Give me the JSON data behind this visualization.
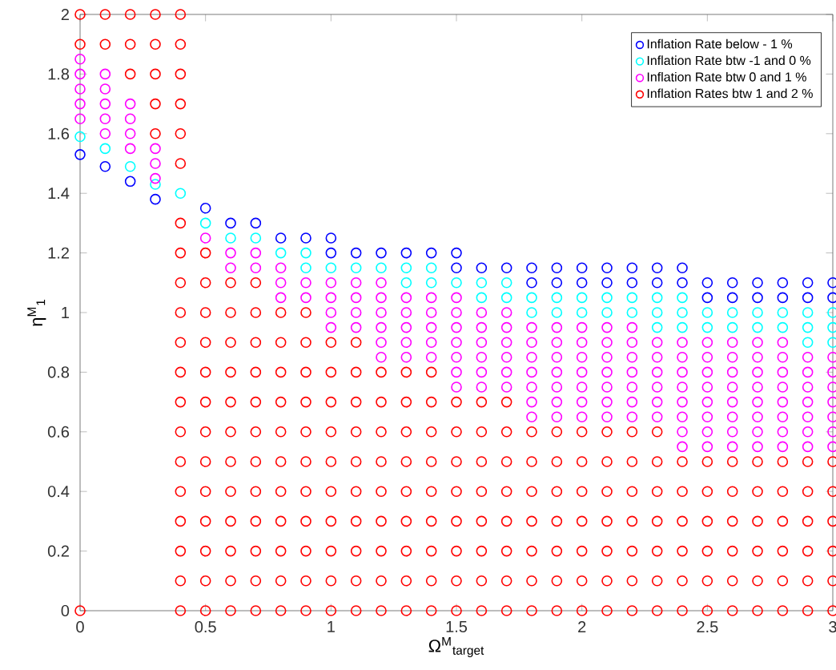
{
  "chart_data": {
    "type": "scatter",
    "xlabel": "Ω$^{M}$$_{target}$",
    "ylabel": "η$^{M}$$_{1}$",
    "xlim": [
      0,
      3
    ],
    "ylim": [
      0,
      2
    ],
    "xticks": [
      0,
      0.5,
      1,
      1.5,
      2,
      2.5,
      3
    ],
    "yticks": [
      0,
      0.2,
      0.4,
      0.6,
      0.8,
      1,
      1.2,
      1.4,
      1.6,
      1.8,
      2
    ],
    "grid": false,
    "legend": "top right",
    "marker": "circle",
    "series": [
      {
        "name": "Inflation Rate below - 1 %",
        "color": "#0000ff",
        "x": [
          0,
          0.1,
          0.2,
          0.3,
          0.5,
          0.6,
          0.7,
          0.8,
          0.9,
          1,
          1,
          1.1,
          1.2,
          1.3,
          1.4,
          1.5,
          1.5,
          1.6,
          1.7,
          1.8,
          1.8,
          1.9,
          1.9,
          2,
          2,
          2.1,
          2.1,
          2.2,
          2.2,
          2.3,
          2.3,
          2.4,
          2.4,
          2.5,
          2.5,
          2.6,
          2.6,
          2.7,
          2.7,
          2.8,
          2.8,
          2.9,
          2.9,
          3,
          3
        ],
        "values": [
          1.53,
          1.49,
          1.44,
          1.38,
          1.35,
          1.3,
          1.3,
          1.25,
          1.25,
          1.2,
          1.25,
          1.2,
          1.2,
          1.2,
          1.2,
          1.15,
          1.2,
          1.15,
          1.15,
          1.1,
          1.15,
          1.1,
          1.15,
          1.1,
          1.15,
          1.1,
          1.15,
          1.1,
          1.15,
          1.1,
          1.15,
          1.1,
          1.15,
          1.05,
          1.1,
          1.05,
          1.1,
          1.05,
          1.1,
          1.05,
          1.1,
          1.05,
          1.1,
          1.05,
          1.1
        ]
      },
      {
        "name": "Inflation Rate btw -1 and 0 %",
        "color": "#00ffff",
        "x": [
          0,
          0.1,
          0.2,
          0.3,
          0.4,
          0.5,
          0.6,
          0.7,
          0.8,
          0.9,
          0.9,
          1,
          1.1,
          1.2,
          1.3,
          1.3,
          1.4,
          1.4,
          1.5,
          1.6,
          1.6,
          1.7,
          1.7,
          1.8,
          1.8,
          1.9,
          1.9,
          2,
          2,
          2.1,
          2.1,
          2.2,
          2.2,
          2.3,
          2.3,
          2.3,
          2.4,
          2.4,
          2.4,
          2.5,
          2.5,
          2.6,
          2.6,
          2.7,
          2.7,
          2.8,
          2.8,
          2.9,
          2.9,
          2.9,
          3,
          3,
          3
        ],
        "values": [
          1.59,
          1.55,
          1.49,
          1.43,
          1.4,
          1.3,
          1.25,
          1.25,
          1.2,
          1.15,
          1.2,
          1.15,
          1.15,
          1.15,
          1.1,
          1.15,
          1.1,
          1.15,
          1.1,
          1.05,
          1.1,
          1.05,
          1.1,
          1,
          1.05,
          1,
          1.05,
          1,
          1.05,
          1,
          1.05,
          1,
          1.05,
          0.95,
          1,
          1.05,
          0.95,
          1,
          1.05,
          0.95,
          1,
          0.95,
          1,
          0.95,
          1,
          0.95,
          1,
          0.9,
          0.95,
          1,
          0.9,
          0.95,
          1
        ]
      },
      {
        "name": "Inflation Rate btw 0 and 1 %",
        "color": "#ff00ff",
        "x": [
          0,
          0,
          0,
          0,
          0,
          0.1,
          0.1,
          0.1,
          0.1,
          0.1,
          0.2,
          0.2,
          0.2,
          0.2,
          0.3,
          0.3,
          0.3,
          0.5,
          0.6,
          0.6,
          0.7,
          0.7,
          0.8,
          0.8,
          0.8,
          0.9,
          0.9,
          1,
          1,
          1,
          1,
          1.1,
          1.1,
          1.1,
          1.1,
          1.2,
          1.2,
          1.2,
          1.2,
          1.2,
          1.2,
          1.3,
          1.3,
          1.3,
          1.3,
          1.3,
          1.4,
          1.4,
          1.4,
          1.4,
          1.4,
          1.5,
          1.5,
          1.5,
          1.5,
          1.5,
          1.5,
          1.5,
          1.6,
          1.6,
          1.6,
          1.6,
          1.6,
          1.6,
          1.7,
          1.7,
          1.7,
          1.7,
          1.7,
          1.7,
          1.8,
          1.8,
          1.8,
          1.8,
          1.8,
          1.8,
          1.8,
          1.9,
          1.9,
          1.9,
          1.9,
          1.9,
          1.9,
          1.9,
          2,
          2,
          2,
          2,
          2,
          2,
          2,
          2.1,
          2.1,
          2.1,
          2.1,
          2.1,
          2.1,
          2.1,
          2.2,
          2.2,
          2.2,
          2.2,
          2.2,
          2.2,
          2.2,
          2.3,
          2.3,
          2.3,
          2.3,
          2.3,
          2.3,
          2.4,
          2.4,
          2.4,
          2.4,
          2.4,
          2.4,
          2.4,
          2.4,
          2.5,
          2.5,
          2.5,
          2.5,
          2.5,
          2.5,
          2.5,
          2.5,
          2.6,
          2.6,
          2.6,
          2.6,
          2.6,
          2.6,
          2.6,
          2.6,
          2.7,
          2.7,
          2.7,
          2.7,
          2.7,
          2.7,
          2.7,
          2.7,
          2.8,
          2.8,
          2.8,
          2.8,
          2.8,
          2.8,
          2.8,
          2.8,
          2.9,
          2.9,
          2.9,
          2.9,
          2.9,
          2.9,
          2.9,
          3,
          3,
          3,
          3,
          3,
          3,
          3
        ],
        "values": [
          1.65,
          1.7,
          1.75,
          1.8,
          1.85,
          1.6,
          1.65,
          1.7,
          1.75,
          1.8,
          1.55,
          1.6,
          1.65,
          1.7,
          1.45,
          1.5,
          1.55,
          1.25,
          1.15,
          1.2,
          1.15,
          1.2,
          1.05,
          1.1,
          1.15,
          1.05,
          1.1,
          0.95,
          1,
          1.05,
          1.1,
          0.95,
          1,
          1.05,
          1.1,
          0.85,
          0.9,
          0.95,
          1,
          1.05,
          1.1,
          0.85,
          0.9,
          0.95,
          1,
          1.05,
          0.85,
          0.9,
          0.95,
          1,
          1.05,
          0.75,
          0.8,
          0.85,
          0.9,
          0.95,
          1,
          1.05,
          0.75,
          0.8,
          0.85,
          0.9,
          0.95,
          1,
          0.75,
          0.8,
          0.85,
          0.9,
          0.95,
          1,
          0.65,
          0.7,
          0.75,
          0.8,
          0.85,
          0.9,
          0.95,
          0.65,
          0.7,
          0.75,
          0.8,
          0.85,
          0.9,
          0.95,
          0.65,
          0.7,
          0.75,
          0.8,
          0.85,
          0.9,
          0.95,
          0.65,
          0.7,
          0.75,
          0.8,
          0.85,
          0.9,
          0.95,
          0.65,
          0.7,
          0.75,
          0.8,
          0.85,
          0.9,
          0.95,
          0.65,
          0.7,
          0.75,
          0.8,
          0.85,
          0.9,
          0.55,
          0.6,
          0.65,
          0.7,
          0.75,
          0.8,
          0.85,
          0.9,
          0.55,
          0.6,
          0.65,
          0.7,
          0.75,
          0.8,
          0.85,
          0.9,
          0.55,
          0.6,
          0.65,
          0.7,
          0.75,
          0.8,
          0.85,
          0.9,
          0.55,
          0.6,
          0.65,
          0.7,
          0.75,
          0.8,
          0.85,
          0.9,
          0.55,
          0.6,
          0.65,
          0.7,
          0.75,
          0.8,
          0.85,
          0.9,
          0.55,
          0.6,
          0.65,
          0.7,
          0.75,
          0.8,
          0.85,
          0.55,
          0.6,
          0.65,
          0.7,
          0.75,
          0.8,
          0.85
        ]
      },
      {
        "name": "Inflation Rates btw 1 and 2 %",
        "color": "#ff0000",
        "x": [
          0,
          0,
          0,
          0.1,
          0.1,
          0.2,
          0.2,
          0.2,
          0.3,
          0.3,
          0.3,
          0.3,
          0.3,
          0.4,
          0.4,
          0.4,
          0.4,
          0.4,
          0.4,
          0.4,
          0.4,
          0.4,
          0.4,
          0.4,
          0.4,
          0.4,
          0.4,
          0.4,
          0.4,
          0.4,
          0.4,
          0.4,
          0.4,
          0.5,
          0.5,
          0.5,
          0.5,
          0.5,
          0.5,
          0.5,
          0.5,
          0.5,
          0.5,
          0.5,
          0.5,
          0.5,
          0.6,
          0.6,
          0.6,
          0.6,
          0.6,
          0.6,
          0.6,
          0.6,
          0.6,
          0.6,
          0.6,
          0.6,
          0.7,
          0.7,
          0.7,
          0.7,
          0.7,
          0.7,
          0.7,
          0.7,
          0.7,
          0.7,
          0.7,
          0.7,
          0.8,
          0.8,
          0.8,
          0.8,
          0.8,
          0.8,
          0.8,
          0.8,
          0.8,
          0.8,
          0.8,
          0.9,
          0.9,
          0.9,
          0.9,
          0.9,
          0.9,
          0.9,
          0.9,
          0.9,
          0.9,
          0.9,
          1,
          1,
          1,
          1,
          1,
          1,
          1,
          1,
          1,
          1,
          1.1,
          1.1,
          1.1,
          1.1,
          1.1,
          1.1,
          1.1,
          1.1,
          1.1,
          1.1,
          1.2,
          1.2,
          1.2,
          1.2,
          1.2,
          1.2,
          1.2,
          1.2,
          1.2,
          1.3,
          1.3,
          1.3,
          1.3,
          1.3,
          1.3,
          1.3,
          1.3,
          1.3,
          1.4,
          1.4,
          1.4,
          1.4,
          1.4,
          1.4,
          1.4,
          1.4,
          1.4,
          1.5,
          1.5,
          1.5,
          1.5,
          1.5,
          1.5,
          1.5,
          1.5,
          1.6,
          1.6,
          1.6,
          1.6,
          1.6,
          1.6,
          1.6,
          1.6,
          1.7,
          1.7,
          1.7,
          1.7,
          1.7,
          1.7,
          1.7,
          1.7,
          1.8,
          1.8,
          1.8,
          1.8,
          1.8,
          1.8,
          1.8,
          1.9,
          1.9,
          1.9,
          1.9,
          1.9,
          1.9,
          1.9,
          2,
          2,
          2,
          2,
          2,
          2,
          2,
          2.1,
          2.1,
          2.1,
          2.1,
          2.1,
          2.1,
          2.1,
          2.2,
          2.2,
          2.2,
          2.2,
          2.2,
          2.2,
          2.2,
          2.3,
          2.3,
          2.3,
          2.3,
          2.3,
          2.3,
          2.3,
          2.4,
          2.4,
          2.4,
          2.4,
          2.4,
          2.4,
          2.5,
          2.5,
          2.5,
          2.5,
          2.5,
          2.5,
          2.6,
          2.6,
          2.6,
          2.6,
          2.6,
          2.6,
          2.7,
          2.7,
          2.7,
          2.7,
          2.7,
          2.7,
          2.8,
          2.8,
          2.8,
          2.8,
          2.8,
          2.8,
          2.9,
          2.9,
          2.9,
          2.9,
          2.9,
          2.9,
          3,
          3,
          3,
          3,
          3,
          3
        ],
        "values": [
          0,
          1.9,
          2,
          1.9,
          2,
          1.8,
          1.9,
          2,
          1.6,
          1.7,
          1.8,
          1.9,
          2,
          0,
          0.1,
          0.2,
          0.3,
          0.4,
          0.5,
          0.6,
          0.7,
          0.8,
          0.9,
          1,
          1.1,
          1.2,
          1.3,
          1.5,
          1.6,
          1.7,
          1.8,
          1.9,
          2,
          0,
          0.1,
          0.2,
          0.3,
          0.4,
          0.5,
          0.6,
          0.7,
          0.8,
          0.9,
          1,
          1.1,
          1.2,
          0,
          0.1,
          0.2,
          0.3,
          0.4,
          0.5,
          0.6,
          0.7,
          0.8,
          0.9,
          1,
          1.1,
          0,
          0.1,
          0.2,
          0.3,
          0.4,
          0.5,
          0.6,
          0.7,
          0.8,
          0.9,
          1,
          1.1,
          0,
          0.1,
          0.2,
          0.3,
          0.4,
          0.5,
          0.6,
          0.7,
          0.8,
          0.9,
          1,
          0,
          0.1,
          0.2,
          0.3,
          0.4,
          0.5,
          0.6,
          0.7,
          0.8,
          0.9,
          1,
          0,
          0.1,
          0.2,
          0.3,
          0.4,
          0.5,
          0.6,
          0.7,
          0.8,
          0.9,
          0,
          0.1,
          0.2,
          0.3,
          0.4,
          0.5,
          0.6,
          0.7,
          0.8,
          0.9,
          0,
          0.1,
          0.2,
          0.3,
          0.4,
          0.5,
          0.6,
          0.7,
          0.8,
          0,
          0.1,
          0.2,
          0.3,
          0.4,
          0.5,
          0.6,
          0.7,
          0.8,
          0,
          0.1,
          0.2,
          0.3,
          0.4,
          0.5,
          0.6,
          0.7,
          0.8,
          0,
          0.1,
          0.2,
          0.3,
          0.4,
          0.5,
          0.6,
          0.7,
          0,
          0.1,
          0.2,
          0.3,
          0.4,
          0.5,
          0.6,
          0.7,
          0,
          0.1,
          0.2,
          0.3,
          0.4,
          0.5,
          0.6,
          0.7,
          0,
          0.1,
          0.2,
          0.3,
          0.4,
          0.5,
          0.6,
          0,
          0.1,
          0.2,
          0.3,
          0.4,
          0.5,
          0.6,
          0,
          0.1,
          0.2,
          0.3,
          0.4,
          0.5,
          0.6,
          0,
          0.1,
          0.2,
          0.3,
          0.4,
          0.5,
          0.6,
          0,
          0.1,
          0.2,
          0.3,
          0.4,
          0.5,
          0.6,
          0,
          0.1,
          0.2,
          0.3,
          0.4,
          0.5,
          0.6,
          0,
          0.1,
          0.2,
          0.3,
          0.4,
          0.5,
          0,
          0.1,
          0.2,
          0.3,
          0.4,
          0.5,
          0,
          0.1,
          0.2,
          0.3,
          0.4,
          0.5,
          0,
          0.1,
          0.2,
          0.3,
          0.4,
          0.5,
          0,
          0.1,
          0.2,
          0.3,
          0.4,
          0.5,
          0,
          0.1,
          0.2,
          0.3,
          0.4,
          0.5,
          0,
          0.1,
          0.2,
          0.3,
          0.4,
          0.5
        ]
      }
    ]
  }
}
